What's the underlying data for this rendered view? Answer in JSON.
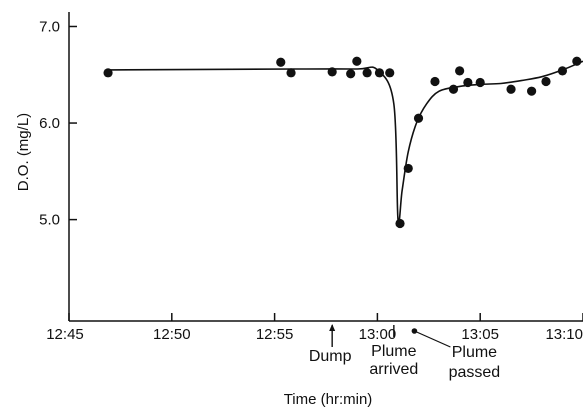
{
  "chart_data": {
    "type": "scatter",
    "title": "",
    "xlabel": "Time (hr:min)",
    "ylabel": "D.O. (mg/L)",
    "xlim": [
      -15,
      10
    ],
    "ylim": [
      3.95,
      7.15
    ],
    "x_ticks": [
      {
        "value": -15,
        "label": "12:45"
      },
      {
        "value": -10,
        "label": "12:50"
      },
      {
        "value": -5,
        "label": "12:55"
      },
      {
        "value": 0,
        "label": "13:00"
      },
      {
        "value": 5,
        "label": "13:05"
      },
      {
        "value": 10,
        "label": "13:10"
      }
    ],
    "y_ticks": [
      {
        "value": 5.0,
        "label": "5.0"
      },
      {
        "value": 6.0,
        "label": "6.0"
      },
      {
        "value": 7.0,
        "label": "7.0"
      }
    ],
    "grid": false,
    "legend": "none",
    "series": [
      {
        "kind": "points",
        "x": [
          -13.1,
          -4.7,
          -4.2,
          -2.2,
          -1.3,
          -1.0,
          -0.5,
          0.1,
          0.6,
          1.1,
          1.5,
          2.0,
          2.8,
          3.7,
          4.0,
          4.4,
          5.0,
          6.5,
          7.5,
          8.2,
          9.0,
          9.7
        ],
        "y": [
          6.52,
          6.63,
          6.52,
          6.53,
          6.51,
          6.64,
          6.52,
          6.52,
          6.52,
          4.96,
          5.53,
          6.05,
          6.43,
          6.35,
          6.54,
          6.42,
          6.42,
          6.35,
          6.33,
          6.43,
          6.54,
          6.64
        ]
      },
      {
        "kind": "fit-curve",
        "x": [
          -13.1,
          -4.0,
          -1.0,
          0.0,
          0.8,
          1.0,
          1.2,
          1.5,
          1.9,
          2.4,
          3.0,
          4.0,
          5.0,
          6.0,
          7.0,
          8.0,
          9.0,
          10.0
        ],
        "y": [
          6.55,
          6.56,
          6.56,
          6.55,
          6.2,
          5.0,
          5.3,
          5.7,
          6.0,
          6.2,
          6.33,
          6.38,
          6.4,
          6.41,
          6.44,
          6.48,
          6.55,
          6.64
        ]
      }
    ],
    "annotations": [
      {
        "label": "Dump",
        "x": -2.2
      },
      {
        "label_lines": [
          "Plume",
          "arrived"
        ],
        "x": 0.8
      },
      {
        "label_lines": [
          "Plume",
          "passed"
        ],
        "x": 1.8
      }
    ]
  }
}
